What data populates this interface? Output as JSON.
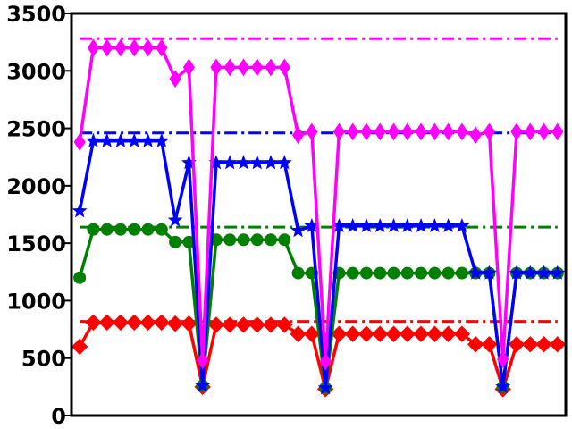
{
  "chart_data": {
    "type": "line",
    "title": "",
    "xlabel": "",
    "ylabel": "",
    "ylim": [
      0,
      3500
    ],
    "xlim": [
      -0.6,
      35.6
    ],
    "yticks": [
      0,
      500,
      1000,
      1500,
      2000,
      2500,
      3000,
      3500
    ],
    "grid": false,
    "x": [
      0,
      1,
      2,
      3,
      4,
      5,
      6,
      7,
      8,
      9,
      10,
      11,
      12,
      13,
      14,
      15,
      16,
      17,
      18,
      19,
      20,
      21,
      22,
      23,
      24,
      25,
      26,
      27,
      28,
      29,
      30,
      31,
      32,
      33,
      34,
      35
    ],
    "series": [
      {
        "color": "#ff0000",
        "marker": "diamond",
        "values": [
          600,
          810,
          810,
          810,
          810,
          810,
          810,
          800,
          800,
          250,
          790,
          790,
          790,
          790,
          790,
          790,
          710,
          710,
          230,
          710,
          710,
          710,
          710,
          710,
          710,
          710,
          710,
          710,
          710,
          620,
          620,
          230,
          620,
          620,
          620,
          620
        ],
        "reference": 820
      },
      {
        "color": "#008000",
        "marker": "circle",
        "values": [
          1200,
          1620,
          1620,
          1620,
          1620,
          1620,
          1620,
          1510,
          1510,
          260,
          1530,
          1530,
          1530,
          1530,
          1530,
          1530,
          1240,
          1240,
          240,
          1240,
          1240,
          1240,
          1240,
          1240,
          1240,
          1240,
          1240,
          1240,
          1240,
          1240,
          1240,
          250,
          1240,
          1240,
          1240,
          1240
        ],
        "reference": 1640
      },
      {
        "color": "#0000ff",
        "marker": "star",
        "values": [
          1780,
          2390,
          2390,
          2390,
          2390,
          2390,
          2390,
          1700,
          2200,
          260,
          2200,
          2200,
          2200,
          2200,
          2200,
          2200,
          1610,
          1650,
          240,
          1650,
          1650,
          1650,
          1650,
          1650,
          1650,
          1650,
          1650,
          1650,
          1650,
          1240,
          1240,
          250,
          1240,
          1240,
          1240,
          1240
        ],
        "reference": 2460
      },
      {
        "color": "#ff00ff",
        "marker": "thin-diamond",
        "values": [
          2380,
          3200,
          3200,
          3200,
          3200,
          3200,
          3200,
          2930,
          3030,
          480,
          3030,
          3030,
          3030,
          3030,
          3030,
          3030,
          2440,
          2470,
          470,
          2470,
          2470,
          2470,
          2470,
          2470,
          2470,
          2470,
          2470,
          2470,
          2470,
          2440,
          2470,
          490,
          2470,
          2470,
          2470,
          2470
        ],
        "reference": 3280
      }
    ]
  }
}
